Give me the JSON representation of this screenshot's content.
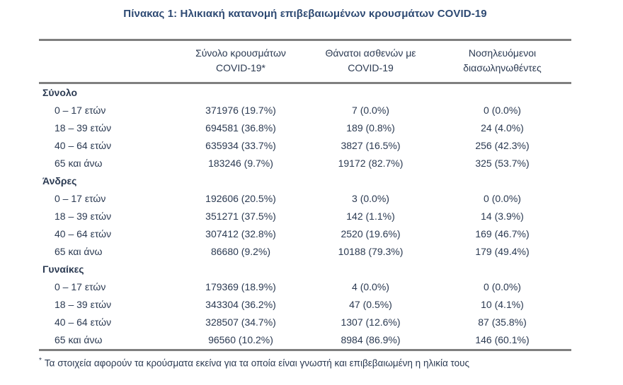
{
  "title": "Πίνακας 1: Ηλικιακή κατανομή επιβεβαιωμένων κρουσμάτων COVID-19",
  "colors": {
    "text": "#2b3a52",
    "title": "#2e4a73",
    "rule": "#7f7f7f",
    "background": "#ffffff"
  },
  "table": {
    "columns": [
      {
        "line1": "Σύνολο κρουσμάτων",
        "line2": "COVID-19*"
      },
      {
        "line1": "Θάνατοι ασθενών με",
        "line2": "COVID-19"
      },
      {
        "line1": "Νοσηλευόμενοι",
        "line2": "διασωληνωθέντες"
      }
    ],
    "sections": [
      {
        "label": "Σύνολο",
        "rows": [
          {
            "age": "0 – 17 ετών",
            "cases": "371976 (19.7%)",
            "deaths": "7 (0.0%)",
            "intubated": "0 (0.0%)"
          },
          {
            "age": "18 – 39 ετών",
            "cases": "694581 (36.8%)",
            "deaths": "189 (0.8%)",
            "intubated": "24 (4.0%)"
          },
          {
            "age": "40 – 64 ετών",
            "cases": "635934 (33.7%)",
            "deaths": "3827 (16.5%)",
            "intubated": "256 (42.3%)"
          },
          {
            "age": "65 και άνω",
            "cases": "183246 (9.7%)",
            "deaths": "19172 (82.7%)",
            "intubated": "325 (53.7%)"
          }
        ]
      },
      {
        "label": "Άνδρες",
        "rows": [
          {
            "age": "0 – 17 ετών",
            "cases": "192606 (20.5%)",
            "deaths": "3 (0.0%)",
            "intubated": "0 (0.0%)"
          },
          {
            "age": "18 – 39 ετών",
            "cases": "351271 (37.5%)",
            "deaths": "142 (1.1%)",
            "intubated": "14 (3.9%)"
          },
          {
            "age": "40 – 64 ετών",
            "cases": "307412 (32.8%)",
            "deaths": "2520 (19.6%)",
            "intubated": "169 (46.7%)"
          },
          {
            "age": "65 και άνω",
            "cases": "86680 (9.2%)",
            "deaths": "10188 (79.3%)",
            "intubated": "179 (49.4%)"
          }
        ]
      },
      {
        "label": "Γυναίκες",
        "rows": [
          {
            "age": "0 – 17 ετών",
            "cases": "179369 (18.9%)",
            "deaths": "4 (0.0%)",
            "intubated": "0 (0.0%)"
          },
          {
            "age": "18 – 39 ετών",
            "cases": "343304 (36.2%)",
            "deaths": "47 (0.5%)",
            "intubated": "10 (4.1%)"
          },
          {
            "age": "40 – 64 ετών",
            "cases": "328507 (34.7%)",
            "deaths": "1307 (12.6%)",
            "intubated": "87 (35.8%)"
          },
          {
            "age": "65 και άνω",
            "cases": "96560 (10.2%)",
            "deaths": "8984 (86.9%)",
            "intubated": "146 (60.1%)"
          }
        ]
      }
    ]
  },
  "footnote": {
    "marker": "*",
    "text": "Τα στοιχεία αφορούν τα κρούσματα εκείνα για τα οποία είναι γνωστή και επιβεβαιωμένη η ηλικία τους"
  }
}
